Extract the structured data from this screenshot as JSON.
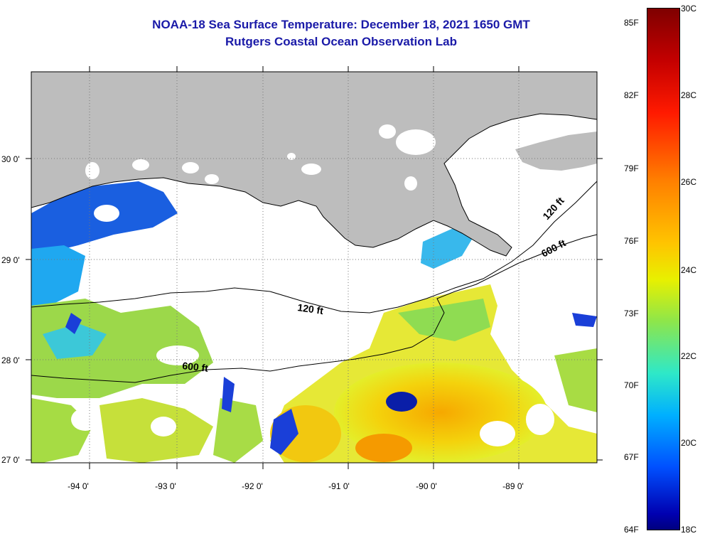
{
  "header": {
    "title": "NOAA-18 Sea Surface Temperature:  December 18, 2021 1650 GMT",
    "subtitle": "Rutgers Coastal Ocean Observation Lab"
  },
  "map": {
    "lat_labels": [
      "30 0'",
      "29 0'",
      "28 0'",
      "27 0'"
    ],
    "lon_labels": [
      "-94 0'",
      "-93 0'",
      "-92 0'",
      "-91 0'",
      "-90 0'",
      "-89 0'"
    ],
    "contour_labels": [
      "120 ft",
      "600 ft",
      "120 ft",
      "600 ft"
    ],
    "colors": {
      "land": "#bdbdbd",
      "cloud": "#ffffff",
      "warm": "#f5c10a",
      "mid": "#b8e03a",
      "cool": "#1f8cf0",
      "cold": "#1530d0"
    }
  },
  "colorbar": {
    "fahrenheit_labels": [
      "85F",
      "82F",
      "79F",
      "76F",
      "73F",
      "70F",
      "67F",
      "64F"
    ],
    "celsius_labels": [
      "30C",
      "28C",
      "26C",
      "24C",
      "22C",
      "20C",
      "18C"
    ]
  }
}
